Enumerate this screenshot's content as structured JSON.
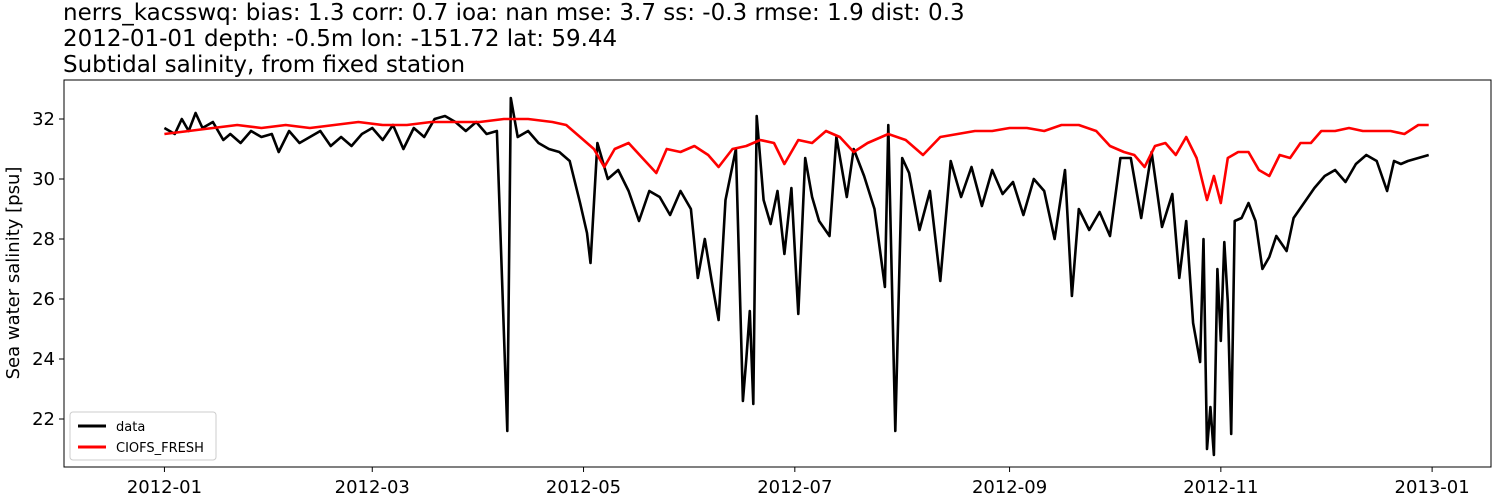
{
  "chart_data": {
    "type": "line",
    "title_lines": [
      "nerrs_kacsswq: bias: 1.3  corr: 0.7  ioa: nan  mse: 3.7  ss: -0.3  rmse: 1.9  dist: 0.3",
      "2012-01-01 depth: -0.5m lon: -151.72 lat: 59.44",
      "Subtidal salinity, from fixed station"
    ],
    "xlabel": "",
    "ylabel": "Sea water salinity [psu]",
    "xlim": [
      "2011-12-03",
      "2013-01-18"
    ],
    "ylim": [
      20.4,
      33.3
    ],
    "x_ticks": [
      "2012-01",
      "2012-03",
      "2012-05",
      "2012-07",
      "2012-09",
      "2012-11",
      "2013-01"
    ],
    "x_tick_dates": [
      "2012-01-01",
      "2012-03-01",
      "2012-05-01",
      "2012-07-01",
      "2012-09-01",
      "2012-11-01",
      "2013-01-01"
    ],
    "y_ticks": [
      22,
      24,
      26,
      28,
      30,
      32
    ],
    "grid": false,
    "legend_position": "lower left",
    "series": [
      {
        "name": "data",
        "color": "#000000",
        "points": [
          [
            "2012-01-01",
            31.7
          ],
          [
            "2012-01-04",
            31.5
          ],
          [
            "2012-01-06",
            32.0
          ],
          [
            "2012-01-08",
            31.6
          ],
          [
            "2012-01-10",
            32.2
          ],
          [
            "2012-01-12",
            31.7
          ],
          [
            "2012-01-15",
            31.9
          ],
          [
            "2012-01-18",
            31.3
          ],
          [
            "2012-01-20",
            31.5
          ],
          [
            "2012-01-23",
            31.2
          ],
          [
            "2012-01-26",
            31.6
          ],
          [
            "2012-01-29",
            31.4
          ],
          [
            "2012-02-01",
            31.5
          ],
          [
            "2012-02-03",
            30.9
          ],
          [
            "2012-02-06",
            31.6
          ],
          [
            "2012-02-09",
            31.2
          ],
          [
            "2012-02-12",
            31.4
          ],
          [
            "2012-02-15",
            31.6
          ],
          [
            "2012-02-18",
            31.1
          ],
          [
            "2012-02-21",
            31.4
          ],
          [
            "2012-02-24",
            31.1
          ],
          [
            "2012-02-27",
            31.5
          ],
          [
            "2012-03-01",
            31.7
          ],
          [
            "2012-03-04",
            31.3
          ],
          [
            "2012-03-07",
            31.8
          ],
          [
            "2012-03-10",
            31.0
          ],
          [
            "2012-03-13",
            31.7
          ],
          [
            "2012-03-16",
            31.4
          ],
          [
            "2012-03-19",
            32.0
          ],
          [
            "2012-03-22",
            32.1
          ],
          [
            "2012-03-25",
            31.9
          ],
          [
            "2012-03-28",
            31.6
          ],
          [
            "2012-03-31",
            31.9
          ],
          [
            "2012-04-03",
            31.5
          ],
          [
            "2012-04-06",
            31.6
          ],
          [
            "2012-04-09",
            21.6
          ],
          [
            "2012-04-10",
            32.7
          ],
          [
            "2012-04-12",
            31.4
          ],
          [
            "2012-04-15",
            31.6
          ],
          [
            "2012-04-18",
            31.2
          ],
          [
            "2012-04-21",
            31.0
          ],
          [
            "2012-04-24",
            30.9
          ],
          [
            "2012-04-27",
            30.6
          ],
          [
            "2012-04-30",
            29.2
          ],
          [
            "2012-05-02",
            28.2
          ],
          [
            "2012-05-03",
            27.2
          ],
          [
            "2012-05-05",
            31.2
          ],
          [
            "2012-05-08",
            30.0
          ],
          [
            "2012-05-11",
            30.3
          ],
          [
            "2012-05-14",
            29.6
          ],
          [
            "2012-05-17",
            28.6
          ],
          [
            "2012-05-20",
            29.6
          ],
          [
            "2012-05-23",
            29.4
          ],
          [
            "2012-05-26",
            28.8
          ],
          [
            "2012-05-29",
            29.6
          ],
          [
            "2012-06-01",
            29.0
          ],
          [
            "2012-06-03",
            26.7
          ],
          [
            "2012-06-05",
            28.0
          ],
          [
            "2012-06-07",
            26.6
          ],
          [
            "2012-06-09",
            25.3
          ],
          [
            "2012-06-11",
            29.3
          ],
          [
            "2012-06-14",
            31.0
          ],
          [
            "2012-06-16",
            22.6
          ],
          [
            "2012-06-17",
            24.0
          ],
          [
            "2012-06-18",
            25.6
          ],
          [
            "2012-06-19",
            22.5
          ],
          [
            "2012-06-20",
            32.1
          ],
          [
            "2012-06-22",
            29.3
          ],
          [
            "2012-06-24",
            28.5
          ],
          [
            "2012-06-26",
            29.6
          ],
          [
            "2012-06-28",
            27.5
          ],
          [
            "2012-06-30",
            29.7
          ],
          [
            "2012-07-02",
            25.5
          ],
          [
            "2012-07-04",
            30.7
          ],
          [
            "2012-07-06",
            29.4
          ],
          [
            "2012-07-08",
            28.6
          ],
          [
            "2012-07-11",
            28.1
          ],
          [
            "2012-07-13",
            31.4
          ],
          [
            "2012-07-16",
            29.4
          ],
          [
            "2012-07-18",
            31.0
          ],
          [
            "2012-07-21",
            30.1
          ],
          [
            "2012-07-24",
            29.0
          ],
          [
            "2012-07-27",
            26.4
          ],
          [
            "2012-07-28",
            31.8
          ],
          [
            "2012-07-30",
            21.6
          ],
          [
            "2012-08-01",
            30.7
          ],
          [
            "2012-08-03",
            30.2
          ],
          [
            "2012-08-06",
            28.3
          ],
          [
            "2012-08-09",
            29.6
          ],
          [
            "2012-08-12",
            26.6
          ],
          [
            "2012-08-15",
            30.6
          ],
          [
            "2012-08-18",
            29.4
          ],
          [
            "2012-08-21",
            30.4
          ],
          [
            "2012-08-24",
            29.1
          ],
          [
            "2012-08-27",
            30.3
          ],
          [
            "2012-08-30",
            29.5
          ],
          [
            "2012-09-02",
            29.9
          ],
          [
            "2012-09-05",
            28.8
          ],
          [
            "2012-09-08",
            30.0
          ],
          [
            "2012-09-11",
            29.6
          ],
          [
            "2012-09-14",
            28.0
          ],
          [
            "2012-09-17",
            30.3
          ],
          [
            "2012-09-19",
            26.1
          ],
          [
            "2012-09-21",
            29.0
          ],
          [
            "2012-09-24",
            28.3
          ],
          [
            "2012-09-27",
            28.9
          ],
          [
            "2012-09-30",
            28.1
          ],
          [
            "2012-10-03",
            30.7
          ],
          [
            "2012-10-06",
            30.7
          ],
          [
            "2012-10-09",
            28.7
          ],
          [
            "2012-10-12",
            30.9
          ],
          [
            "2012-10-15",
            28.4
          ],
          [
            "2012-10-18",
            29.5
          ],
          [
            "2012-10-20",
            26.7
          ],
          [
            "2012-10-22",
            28.6
          ],
          [
            "2012-10-24",
            25.2
          ],
          [
            "2012-10-26",
            23.9
          ],
          [
            "2012-10-27",
            28.0
          ],
          [
            "2012-10-28",
            21.0
          ],
          [
            "2012-10-29",
            22.4
          ],
          [
            "2012-10-30",
            20.8
          ],
          [
            "2012-10-31",
            27.0
          ],
          [
            "2012-11-01",
            24.6
          ],
          [
            "2012-11-02",
            27.9
          ],
          [
            "2012-11-03",
            25.9
          ],
          [
            "2012-11-04",
            21.5
          ],
          [
            "2012-11-05",
            28.6
          ],
          [
            "2012-11-07",
            28.7
          ],
          [
            "2012-11-09",
            29.2
          ],
          [
            "2012-11-11",
            28.6
          ],
          [
            "2012-11-13",
            27.0
          ],
          [
            "2012-11-15",
            27.4
          ],
          [
            "2012-11-17",
            28.1
          ],
          [
            "2012-11-20",
            27.6
          ],
          [
            "2012-11-22",
            28.7
          ],
          [
            "2012-11-25",
            29.2
          ],
          [
            "2012-11-28",
            29.7
          ],
          [
            "2012-12-01",
            30.1
          ],
          [
            "2012-12-04",
            30.3
          ],
          [
            "2012-12-07",
            29.9
          ],
          [
            "2012-12-10",
            30.5
          ],
          [
            "2012-12-13",
            30.8
          ],
          [
            "2012-12-16",
            30.6
          ],
          [
            "2012-12-19",
            29.6
          ],
          [
            "2012-12-21",
            30.6
          ],
          [
            "2012-12-23",
            30.5
          ],
          [
            "2012-12-25",
            30.6
          ],
          [
            "2012-12-28",
            30.7
          ],
          [
            "2012-12-31",
            30.8
          ]
        ]
      },
      {
        "name": "CIOFS_FRESH",
        "color": "#ff0000",
        "points": [
          [
            "2012-01-01",
            31.5
          ],
          [
            "2012-01-08",
            31.6
          ],
          [
            "2012-01-15",
            31.7
          ],
          [
            "2012-01-22",
            31.8
          ],
          [
            "2012-01-29",
            31.7
          ],
          [
            "2012-02-05",
            31.8
          ],
          [
            "2012-02-12",
            31.7
          ],
          [
            "2012-02-19",
            31.8
          ],
          [
            "2012-02-26",
            31.9
          ],
          [
            "2012-03-04",
            31.8
          ],
          [
            "2012-03-11",
            31.8
          ],
          [
            "2012-03-18",
            31.9
          ],
          [
            "2012-03-25",
            31.9
          ],
          [
            "2012-04-01",
            31.9
          ],
          [
            "2012-04-08",
            32.0
          ],
          [
            "2012-04-15",
            32.0
          ],
          [
            "2012-04-22",
            31.9
          ],
          [
            "2012-04-26",
            31.8
          ],
          [
            "2012-04-30",
            31.4
          ],
          [
            "2012-05-04",
            31.0
          ],
          [
            "2012-05-07",
            30.4
          ],
          [
            "2012-05-10",
            31.0
          ],
          [
            "2012-05-14",
            31.2
          ],
          [
            "2012-05-18",
            30.7
          ],
          [
            "2012-05-22",
            30.2
          ],
          [
            "2012-05-25",
            31.0
          ],
          [
            "2012-05-29",
            30.9
          ],
          [
            "2012-06-02",
            31.1
          ],
          [
            "2012-06-06",
            30.8
          ],
          [
            "2012-06-09",
            30.4
          ],
          [
            "2012-06-13",
            31.0
          ],
          [
            "2012-06-17",
            31.1
          ],
          [
            "2012-06-21",
            31.3
          ],
          [
            "2012-06-25",
            31.2
          ],
          [
            "2012-06-28",
            30.5
          ],
          [
            "2012-07-02",
            31.3
          ],
          [
            "2012-07-06",
            31.2
          ],
          [
            "2012-07-10",
            31.6
          ],
          [
            "2012-07-14",
            31.4
          ],
          [
            "2012-07-18",
            30.9
          ],
          [
            "2012-07-22",
            31.2
          ],
          [
            "2012-07-26",
            31.4
          ],
          [
            "2012-07-28",
            31.5
          ],
          [
            "2012-08-02",
            31.3
          ],
          [
            "2012-08-07",
            30.8
          ],
          [
            "2012-08-12",
            31.4
          ],
          [
            "2012-08-17",
            31.5
          ],
          [
            "2012-08-22",
            31.6
          ],
          [
            "2012-08-27",
            31.6
          ],
          [
            "2012-09-01",
            31.7
          ],
          [
            "2012-09-06",
            31.7
          ],
          [
            "2012-09-11",
            31.6
          ],
          [
            "2012-09-16",
            31.8
          ],
          [
            "2012-09-21",
            31.8
          ],
          [
            "2012-09-26",
            31.6
          ],
          [
            "2012-09-30",
            31.1
          ],
          [
            "2012-10-04",
            30.9
          ],
          [
            "2012-10-07",
            30.8
          ],
          [
            "2012-10-10",
            30.4
          ],
          [
            "2012-10-13",
            31.1
          ],
          [
            "2012-10-16",
            31.2
          ],
          [
            "2012-10-19",
            30.8
          ],
          [
            "2012-10-22",
            31.4
          ],
          [
            "2012-10-25",
            30.7
          ],
          [
            "2012-10-28",
            29.3
          ],
          [
            "2012-10-30",
            30.1
          ],
          [
            "2012-11-01",
            29.2
          ],
          [
            "2012-11-03",
            30.7
          ],
          [
            "2012-11-06",
            30.9
          ],
          [
            "2012-11-09",
            30.9
          ],
          [
            "2012-11-12",
            30.3
          ],
          [
            "2012-11-15",
            30.1
          ],
          [
            "2012-11-18",
            30.8
          ],
          [
            "2012-11-21",
            30.7
          ],
          [
            "2012-11-24",
            31.2
          ],
          [
            "2012-11-27",
            31.2
          ],
          [
            "2012-11-30",
            31.6
          ],
          [
            "2012-12-04",
            31.6
          ],
          [
            "2012-12-08",
            31.7
          ],
          [
            "2012-12-12",
            31.6
          ],
          [
            "2012-12-16",
            31.6
          ],
          [
            "2012-12-20",
            31.6
          ],
          [
            "2012-12-24",
            31.5
          ],
          [
            "2012-12-28",
            31.8
          ],
          [
            "2012-12-31",
            31.8
          ]
        ]
      }
    ]
  }
}
